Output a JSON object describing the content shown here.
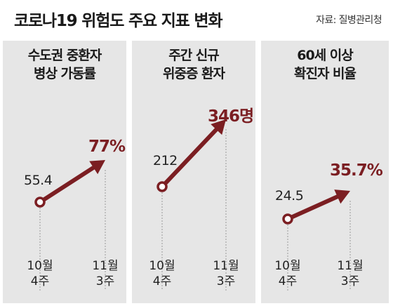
{
  "title": "코로나19 위험도 주요 지표 변화",
  "source": "자료: 질병관리청",
  "colors": {
    "accent": "#7b1e22",
    "panel": "#e6e6e6"
  },
  "chart_data": [
    {
      "type": "line",
      "title": [
        "수도권 중환자",
        "병상 가동률"
      ],
      "x": [
        [
          "10월",
          "4주"
        ],
        [
          "11월",
          "3주"
        ]
      ],
      "values": [
        55.4,
        77
      ],
      "labels": [
        "55.4",
        "77%"
      ]
    },
    {
      "type": "line",
      "title": [
        "주간 신규",
        "위중증 환자"
      ],
      "x": [
        [
          "10월",
          "4주"
        ],
        [
          "11월",
          "3주"
        ]
      ],
      "values": [
        212,
        346
      ],
      "labels": [
        "212",
        "346명"
      ]
    },
    {
      "type": "line",
      "title": [
        "60세 이상",
        "확진자 비율"
      ],
      "x": [
        [
          "10월",
          "4주"
        ],
        [
          "11월",
          "3주"
        ]
      ],
      "values": [
        24.5,
        35.7
      ],
      "labels": [
        "24.5",
        "35.7%"
      ]
    }
  ]
}
